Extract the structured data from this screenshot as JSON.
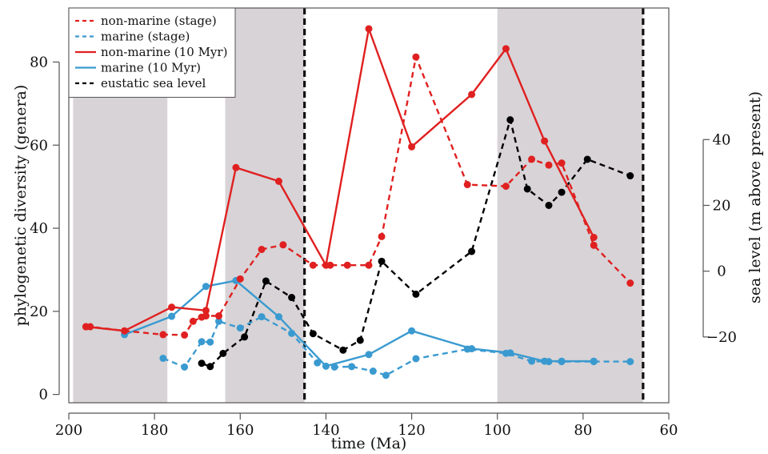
{
  "chart_data": {
    "type": "line",
    "title": "",
    "xlabel": "time (Ma)",
    "ylabel": "phylogenetic diversity (genera)",
    "y2label": "sea level (m above present)",
    "xlim": [
      200,
      60
    ],
    "ylim": [
      -2,
      93
    ],
    "y2lim": [
      -40,
      80
    ],
    "x_reversed": true,
    "grid": false,
    "legend_position": "top-left",
    "x_ticks": [
      200,
      180,
      160,
      140,
      120,
      100,
      80,
      60
    ],
    "x_tick_labels": [
      "200",
      "180",
      "160",
      "140",
      "120",
      "100",
      "80",
      "60"
    ],
    "y_ticks": [
      0,
      20,
      40,
      60,
      80
    ],
    "y_tick_labels": [
      "0",
      "20",
      "40",
      "60",
      "80"
    ],
    "y2_ticks": [
      -20,
      0,
      20,
      40
    ],
    "y2_tick_labels": [
      "−20",
      "0",
      "20",
      "40"
    ],
    "shaded_intervals": [
      [
        199,
        177
      ],
      [
        163.5,
        145
      ],
      [
        100,
        66
      ]
    ],
    "boundary_lines": [
      145,
      66
    ],
    "colors": {
      "red": "#e02020",
      "blue": "#3a9ad0",
      "black": "#000000",
      "shade": "#d7d3d6"
    },
    "series": [
      {
        "name": "non-marine (stage)",
        "axis": "left",
        "style": "dashed",
        "color": "#e02020",
        "x": [
          196,
          195,
          187,
          178,
          173,
          171,
          169,
          168,
          165,
          160,
          155,
          150,
          143,
          139,
          135,
          130,
          127,
          119,
          107,
          98,
          92,
          88,
          85,
          77.5,
          69
        ],
        "y": [
          16.3,
          16.3,
          15.3,
          14.4,
          14.3,
          17.6,
          18.6,
          18.9,
          18.9,
          27.8,
          34.9,
          36.0,
          31.1,
          31.1,
          31.1,
          31.1,
          38.0,
          81.2,
          50.5,
          50.1,
          56.6,
          55.2,
          55.7,
          35.9,
          26.8
        ]
      },
      {
        "name": "marine (stage)",
        "axis": "left",
        "style": "dashed",
        "color": "#3a9ad0",
        "x": [
          178,
          173,
          169,
          167,
          165,
          160,
          155,
          148,
          142,
          138,
          134,
          129,
          126,
          119,
          107,
          98,
          92,
          88,
          85,
          77.5,
          69
        ],
        "y": [
          8.7,
          6.6,
          12.7,
          12.6,
          17.6,
          16.0,
          18.7,
          14.7,
          7.6,
          6.6,
          6.7,
          5.6,
          4.6,
          8.6,
          10.9,
          9.9,
          8.0,
          7.9,
          7.9,
          7.9,
          7.9
        ]
      },
      {
        "name": "non-marine (10 Myr)",
        "axis": "left",
        "style": "solid",
        "color": "#e02020",
        "x": [
          196,
          187,
          176,
          168,
          161,
          151,
          140,
          130,
          120,
          106,
          98,
          89,
          77.5
        ],
        "y": [
          16.3,
          15.3,
          21.0,
          20.2,
          54.6,
          51.3,
          31.1,
          88.0,
          59.6,
          72.2,
          83.2,
          61.0,
          37.8
        ]
      },
      {
        "name": "marine (10 Myr)",
        "axis": "left",
        "style": "solid",
        "color": "#3a9ad0",
        "x": [
          187,
          176,
          168,
          161,
          151,
          140,
          130,
          120,
          106,
          97,
          89,
          85,
          77.5
        ],
        "y": [
          14.4,
          18.8,
          26.0,
          27.4,
          18.7,
          6.8,
          9.6,
          15.3,
          11.0,
          10.0,
          8.0,
          8.0,
          8.0
        ]
      },
      {
        "name": "eustatic sea level",
        "axis": "right",
        "style": "dashed",
        "color": "#000000",
        "x": [
          169,
          167,
          164,
          159,
          154,
          148,
          143,
          136,
          132,
          127,
          119,
          106,
          97,
          93,
          88,
          85,
          79,
          69
        ],
        "y": [
          -28,
          -29,
          -25,
          -20,
          -3,
          -8,
          -19,
          -24,
          -21,
          3,
          -7,
          6,
          46,
          25,
          20,
          24,
          34,
          29
        ]
      }
    ]
  }
}
